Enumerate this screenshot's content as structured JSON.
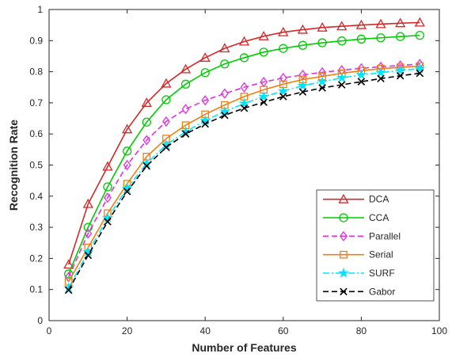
{
  "chart_data": {
    "type": "line",
    "title": "",
    "xlabel": "Number of Features",
    "ylabel": "Recognition Rate",
    "xlim": [
      0,
      100
    ],
    "ylim": [
      0,
      1
    ],
    "xticks": [
      0,
      20,
      40,
      60,
      80,
      100
    ],
    "yticks": [
      0,
      0.1,
      0.2,
      0.3,
      0.4,
      0.5,
      0.6,
      0.7,
      0.8,
      0.9,
      1
    ],
    "grid": false,
    "legend_position": "bottom-right",
    "x": [
      5,
      10,
      15,
      20,
      25,
      30,
      35,
      40,
      45,
      50,
      55,
      60,
      65,
      70,
      75,
      80,
      85,
      90,
      95
    ],
    "series": [
      {
        "name": "DCA",
        "color": "#d62728",
        "dash": "solid",
        "marker": "triangle",
        "values": [
          0.18,
          0.375,
          0.495,
          0.615,
          0.7,
          0.762,
          0.808,
          0.845,
          0.875,
          0.897,
          0.914,
          0.927,
          0.935,
          0.942,
          0.946,
          0.95,
          0.953,
          0.956,
          0.958
        ]
      },
      {
        "name": "CCA",
        "color": "#00cc00",
        "dash": "solid",
        "marker": "circle",
        "values": [
          0.15,
          0.3,
          0.43,
          0.545,
          0.638,
          0.71,
          0.76,
          0.797,
          0.825,
          0.845,
          0.863,
          0.875,
          0.885,
          0.893,
          0.899,
          0.905,
          0.909,
          0.913,
          0.917
        ]
      },
      {
        "name": "Parallel",
        "color": "#e030e0",
        "dash": "dashed",
        "marker": "diamond",
        "values": [
          0.14,
          0.28,
          0.395,
          0.5,
          0.58,
          0.64,
          0.68,
          0.708,
          0.73,
          0.75,
          0.767,
          0.78,
          0.79,
          0.798,
          0.805,
          0.811,
          0.816,
          0.82,
          0.825
        ]
      },
      {
        "name": "Serial",
        "color": "#f07f10",
        "dash": "solid",
        "marker": "square",
        "values": [
          0.125,
          0.235,
          0.345,
          0.44,
          0.527,
          0.585,
          0.628,
          0.663,
          0.693,
          0.72,
          0.742,
          0.76,
          0.775,
          0.785,
          0.795,
          0.803,
          0.81,
          0.814,
          0.818
        ]
      },
      {
        "name": "SURF",
        "color": "#00e5ff",
        "dash": "dashdot",
        "marker": "star",
        "values": [
          0.105,
          0.22,
          0.33,
          0.425,
          0.505,
          0.565,
          0.607,
          0.643,
          0.672,
          0.698,
          0.72,
          0.738,
          0.755,
          0.768,
          0.78,
          0.79,
          0.797,
          0.804,
          0.81
        ]
      },
      {
        "name": "Gabor",
        "color": "#000000",
        "dash": "dashed",
        "marker": "x",
        "values": [
          0.098,
          0.21,
          0.318,
          0.415,
          0.497,
          0.557,
          0.6,
          0.632,
          0.66,
          0.683,
          0.702,
          0.72,
          0.735,
          0.748,
          0.758,
          0.768,
          0.778,
          0.787,
          0.795
        ]
      }
    ]
  }
}
